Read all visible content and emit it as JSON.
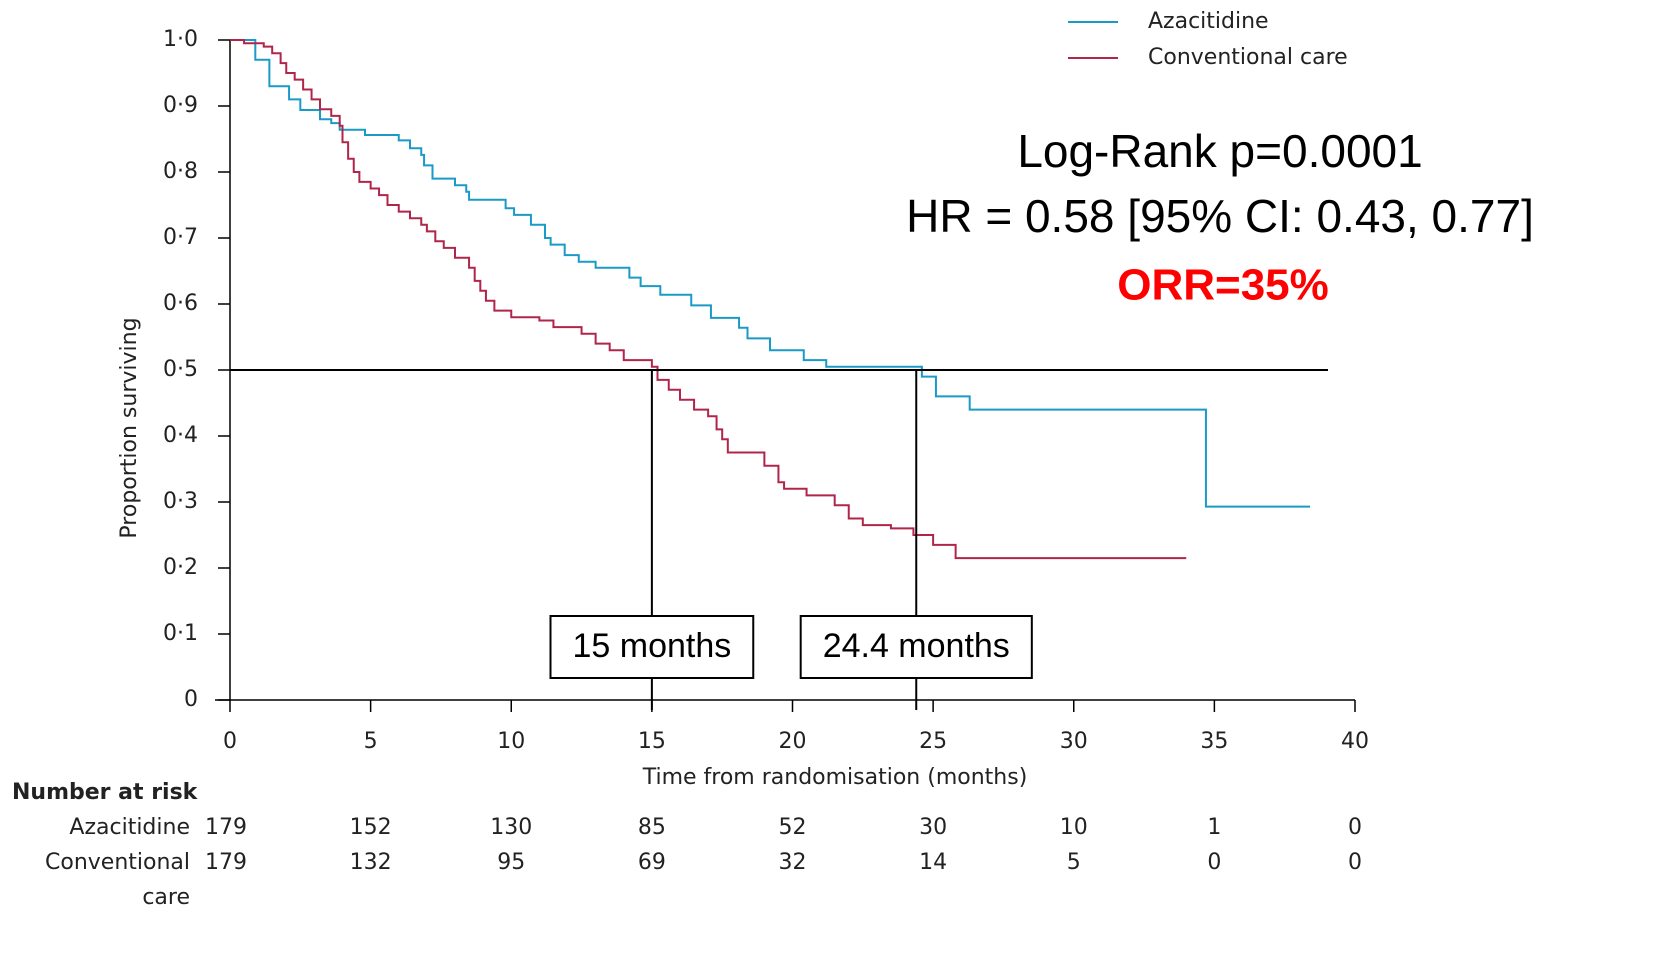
{
  "chart_data": {
    "type": "line",
    "step": "post",
    "x_label": "Time from randomisation (months)",
    "y_label": "Proportion surviving",
    "xlim": [
      0,
      40
    ],
    "ylim": [
      0,
      1
    ],
    "xticks": [
      0,
      5,
      10,
      15,
      20,
      25,
      30,
      35,
      40
    ],
    "yticks": [
      0,
      {
        "value": 0.1,
        "label": "0·1"
      },
      {
        "value": 0.2,
        "label": "0·2"
      },
      {
        "value": 0.3,
        "label": "0·3"
      },
      {
        "value": 0.4,
        "label": "0·4"
      },
      {
        "value": 0.5,
        "label": "0·5"
      },
      {
        "value": 0.6,
        "label": "0·6"
      },
      {
        "value": 0.7,
        "label": "0·7"
      },
      {
        "value": 0.8,
        "label": "0·8"
      },
      {
        "value": 0.9,
        "label": "0·9"
      },
      {
        "value": 1,
        "label": "1·0"
      }
    ],
    "legend": "top-right",
    "series": [
      {
        "name": "Azacitidine",
        "color": "#1a9ac6",
        "x": [
          0,
          0.9,
          1.4,
          2.1,
          2.5,
          3.2,
          3.6,
          3.9,
          4.8,
          6.0,
          6.4,
          6.8,
          6.9,
          7.2,
          8.0,
          8.4,
          8.5,
          9.8,
          10.1,
          10.7,
          11.2,
          11.4,
          11.9,
          12.4,
          13.0,
          14.2,
          14.6,
          15.3,
          16.4,
          17.1,
          18.1,
          18.4,
          19.2,
          20.4,
          21.2,
          24.6,
          25.1,
          26.3,
          34.7,
          38.4
        ],
        "values": [
          1.0,
          0.97,
          0.93,
          0.91,
          0.894,
          0.88,
          0.874,
          0.864,
          0.856,
          0.848,
          0.836,
          0.826,
          0.81,
          0.79,
          0.78,
          0.77,
          0.758,
          0.745,
          0.735,
          0.72,
          0.7,
          0.69,
          0.674,
          0.664,
          0.655,
          0.64,
          0.627,
          0.614,
          0.598,
          0.579,
          0.564,
          0.548,
          0.53,
          0.515,
          0.505,
          0.49,
          0.46,
          0.44,
          0.293,
          0.293
        ]
      },
      {
        "name": "Conventional care",
        "color": "#b0254a",
        "x": [
          0,
          0.5,
          1.2,
          1.5,
          1.8,
          2.0,
          2.3,
          2.6,
          2.9,
          3.2,
          3.6,
          3.9,
          4.0,
          4.2,
          4.4,
          4.6,
          5.0,
          5.3,
          5.6,
          6.0,
          6.4,
          6.8,
          7.0,
          7.3,
          7.6,
          8.0,
          8.5,
          8.7,
          8.9,
          9.1,
          9.4,
          10.0,
          11.0,
          11.5,
          12.5,
          13.0,
          13.5,
          14.0,
          15.0,
          15.2,
          15.6,
          16.0,
          16.5,
          17.0,
          17.3,
          17.5,
          17.7,
          19.0,
          19.5,
          19.7,
          20.5,
          21.5,
          22.0,
          22.5,
          23.5,
          24.3,
          25.0,
          25.8,
          34.0
        ],
        "values": [
          1.0,
          0.995,
          0.99,
          0.98,
          0.965,
          0.95,
          0.94,
          0.925,
          0.91,
          0.895,
          0.885,
          0.87,
          0.845,
          0.82,
          0.8,
          0.785,
          0.775,
          0.765,
          0.75,
          0.74,
          0.73,
          0.72,
          0.71,
          0.695,
          0.685,
          0.67,
          0.655,
          0.635,
          0.62,
          0.605,
          0.59,
          0.58,
          0.575,
          0.565,
          0.555,
          0.54,
          0.53,
          0.515,
          0.505,
          0.485,
          0.47,
          0.455,
          0.44,
          0.43,
          0.41,
          0.395,
          0.375,
          0.355,
          0.33,
          0.32,
          0.31,
          0.295,
          0.275,
          0.265,
          0.26,
          0.25,
          0.235,
          0.215,
          0.215
        ]
      }
    ],
    "median_y": 0.5,
    "medians": [
      {
        "x": 15,
        "label": "15 months"
      },
      {
        "x": 24.4,
        "label": "24.4 months"
      }
    ],
    "annotations": [
      "Log-Rank  p=0.0001",
      "HR = 0.58 [95% CI: 0.43, 0.77]",
      "ORR=35%"
    ],
    "risk_table": {
      "title": "Number at risk",
      "rows": [
        {
          "label_lines": [
            "Azacitidine"
          ],
          "values": [
            179,
            152,
            130,
            85,
            52,
            30,
            10,
            1,
            0
          ]
        },
        {
          "label_lines": [
            "Conventional",
            "care"
          ],
          "values": [
            179,
            132,
            95,
            69,
            32,
            14,
            5,
            0,
            0
          ]
        }
      ]
    }
  }
}
